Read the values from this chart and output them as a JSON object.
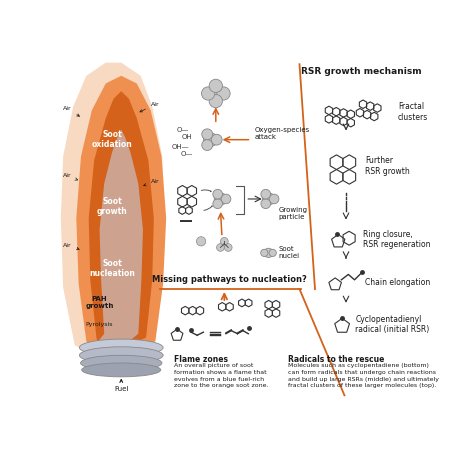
{
  "bg_color": "#ffffff",
  "orange_dark": "#D4621A",
  "orange_light": "#F5C5A0",
  "orange_med": "#F09050",
  "gray_light": "#C8C8C8",
  "gray_med": "#888888",
  "blue_light": "#C8D8F0",
  "text_dark": "#1a1a1a",
  "flame_zones_title": "Flame zones",
  "flame_zones_body": "An overall picture of soot\nformation shows a flame that\nevolves from a blue fuel-rich\nzone to the orange soot zone.",
  "radicals_title": "Radicals to the rescue",
  "radicals_body": "Molecules such as cyclopentadiene (bottom)\ncan form radicals that undergo chain reactions\nand build up large RSRs (middle) and ultimately\nfractal clusters of these larger molecules (top).",
  "rsr_title": "RSR growth mechanism",
  "label_missing": "Missing pathways to nucleation?",
  "label_oxygen": "Oxygen-species\nattack",
  "label_growing": "Growing\nparticle",
  "label_soot_nuclei": "Soot\nnuclei",
  "label_fractal": "Fractal\nclusters",
  "label_further": "Further\nRSR growth",
  "label_ring": "Ring closure,\nRSR regeneration",
  "label_chain": "Chain elongation",
  "label_cyclo": "Cyclopentadienyl\nradical (initial RSR)"
}
